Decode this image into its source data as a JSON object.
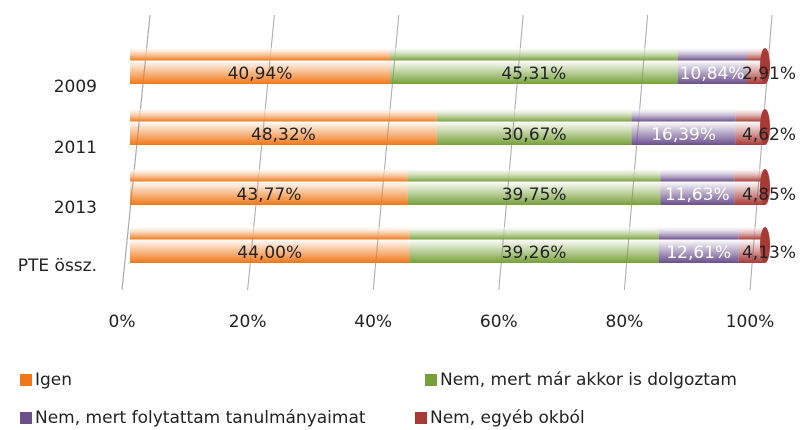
{
  "chart_data": {
    "type": "bar",
    "orientation": "horizontal",
    "stacked": true,
    "categories": [
      "2009",
      "2011",
      "2013",
      "PTE össz."
    ],
    "series": [
      {
        "name": "Igen",
        "color": "#f07818",
        "values": [
          40.94,
          48.32,
          43.77,
          44.0
        ],
        "value_labels": [
          "40,94%",
          "48,32%",
          "43,77%",
          "44,00%"
        ]
      },
      {
        "name": "Nem, mert már akkor is dolgoztam",
        "color": "#77a03a",
        "values": [
          45.31,
          30.67,
          39.75,
          39.26
        ],
        "value_labels": [
          "45,31%",
          "30,67%",
          "39,75%",
          "39,26%"
        ]
      },
      {
        "name": "Nem, mert folytattam tanulmányaimat",
        "color": "#6a4f8c",
        "values": [
          10.84,
          16.39,
          11.63,
          12.61
        ],
        "value_labels": [
          "10,84%",
          "16,39%",
          "11,63%",
          "12,61%"
        ]
      },
      {
        "name": "Nem, egyéb okból",
        "color": "#a83a36",
        "values": [
          2.91,
          4.62,
          4.85,
          4.13
        ],
        "value_labels": [
          "2,91%",
          "4,62%",
          "4,85%",
          "4,13%"
        ]
      }
    ],
    "xlim": [
      0,
      100
    ],
    "xticks": [
      {
        "value": 0,
        "label": "0%"
      },
      {
        "value": 20,
        "label": "20%"
      },
      {
        "value": 40,
        "label": "40%"
      },
      {
        "value": 60,
        "label": "60%"
      },
      {
        "value": 80,
        "label": "80%"
      },
      {
        "value": 100,
        "label": "100%"
      }
    ],
    "grid": true,
    "legend": "bottom"
  }
}
